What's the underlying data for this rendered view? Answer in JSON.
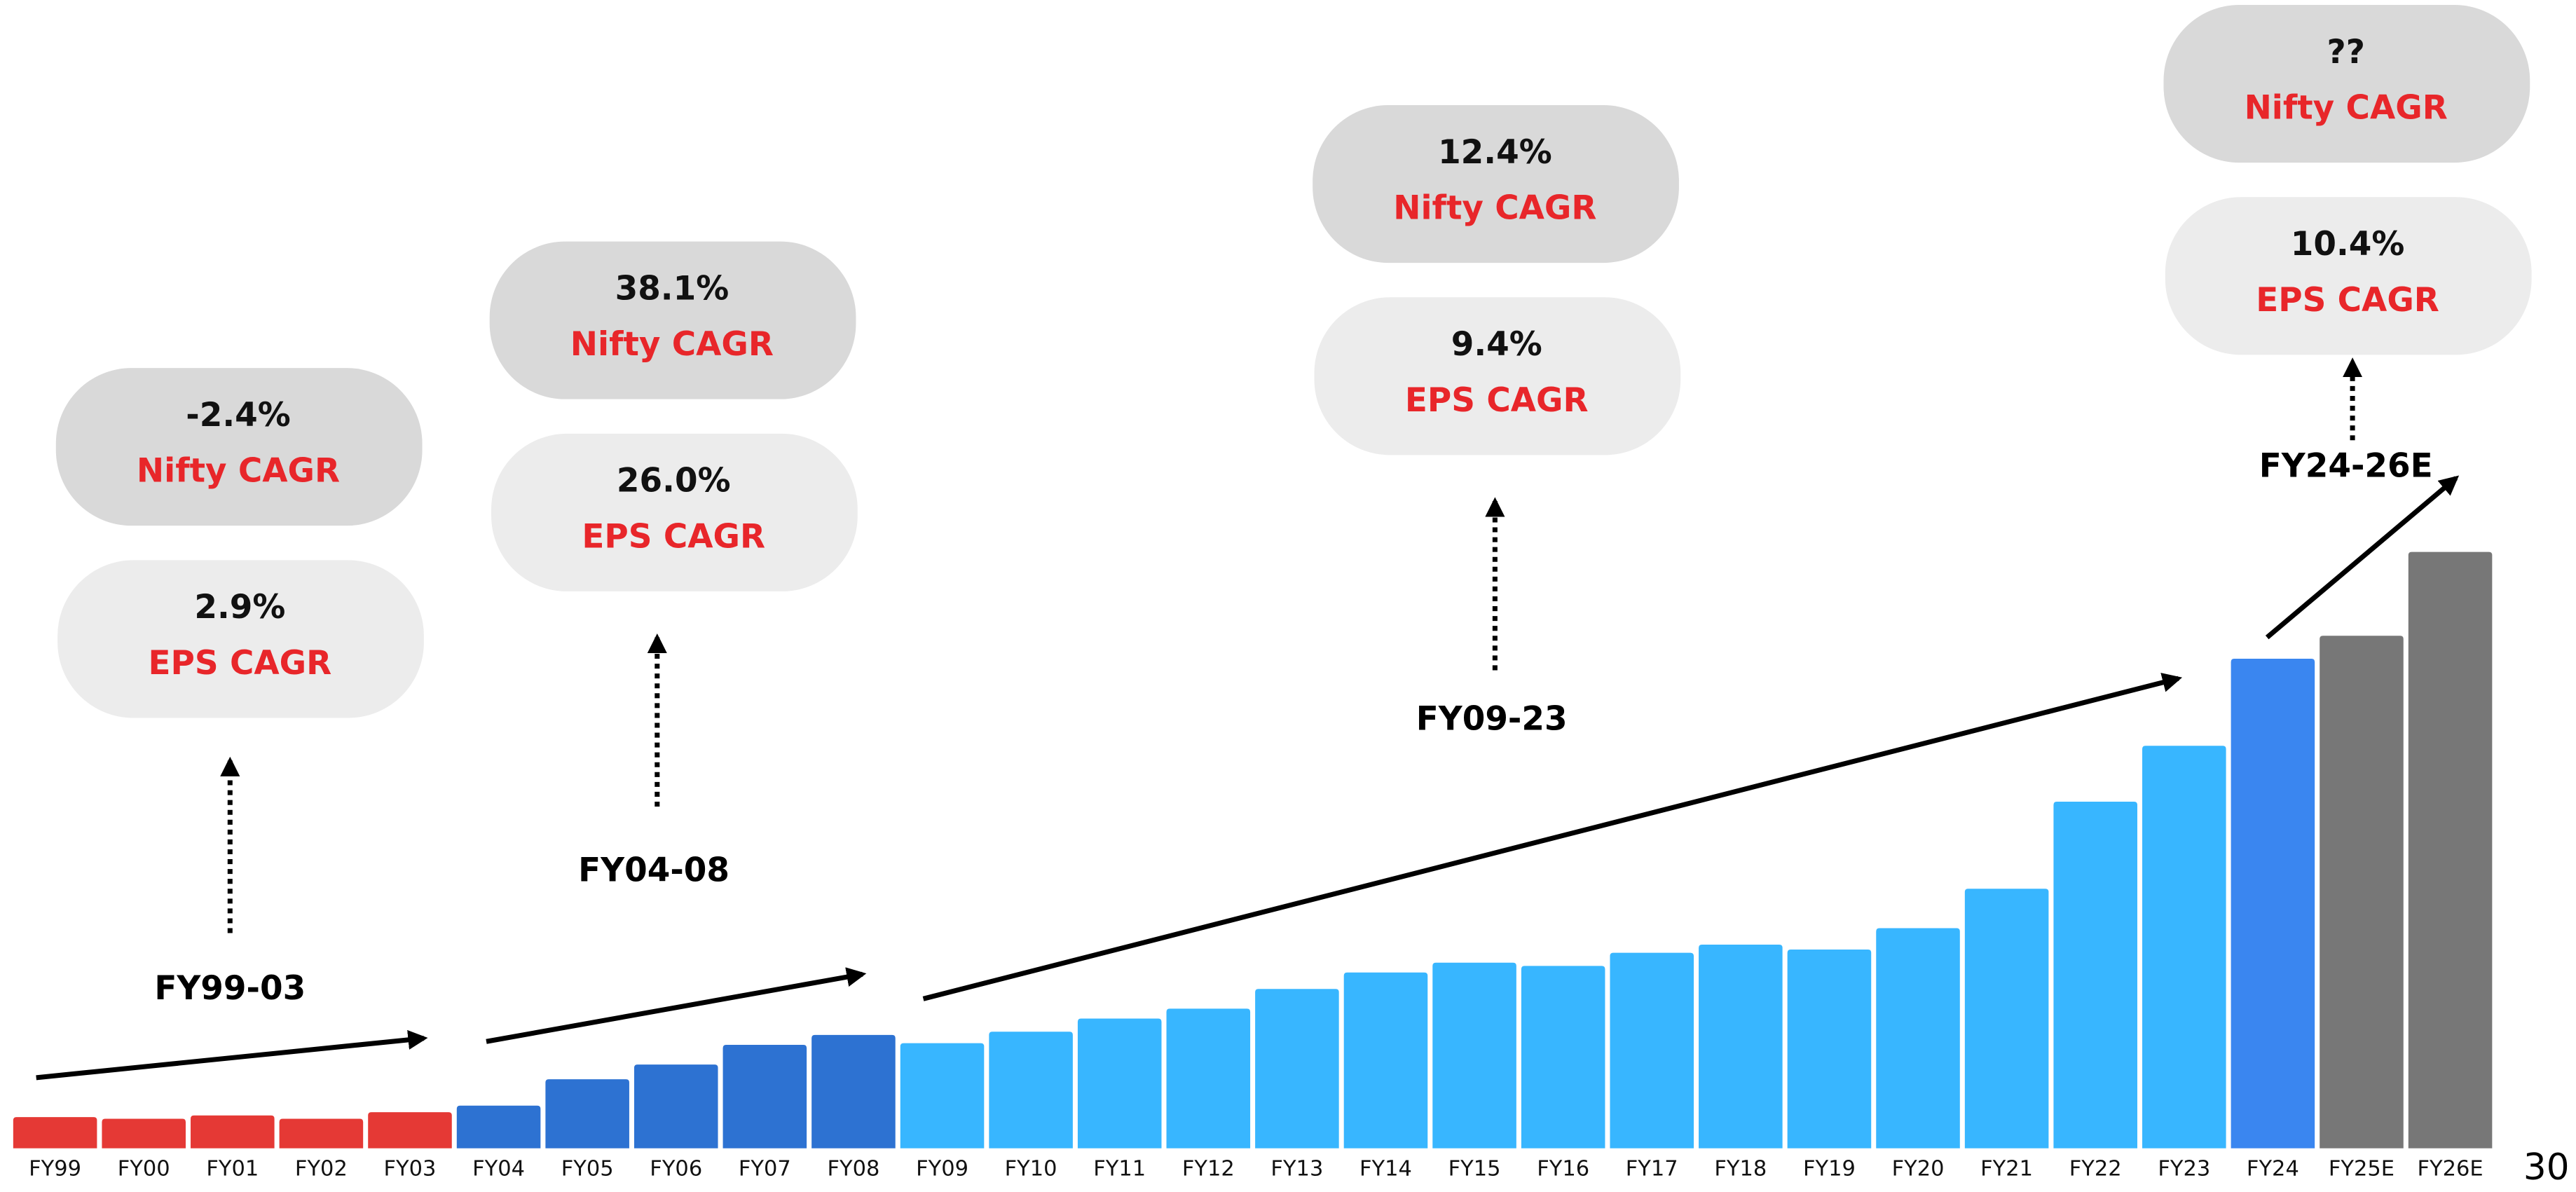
{
  "chart_data": {
    "type": "bar",
    "categories": [
      "FY99",
      "FY00",
      "FY01",
      "FY02",
      "FY03",
      "FY04",
      "FY05",
      "FY06",
      "FY07",
      "FY08",
      "FY09",
      "FY10",
      "FY11",
      "FY12",
      "FY13",
      "FY14",
      "FY15",
      "FY16",
      "FY17",
      "FY18",
      "FY19",
      "FY20",
      "FY21",
      "FY22",
      "FY23",
      "FY24",
      "FY25E",
      "FY26E"
    ],
    "values": [
      19,
      18,
      20,
      18,
      22,
      26,
      42,
      51,
      63,
      69,
      64,
      71,
      79,
      85,
      97,
      107,
      113,
      111,
      119,
      124,
      121,
      134,
      158,
      211,
      245,
      298,
      312,
      363
    ],
    "colors": [
      "#e53935",
      "#e53935",
      "#e53935",
      "#e53935",
      "#e53935",
      "#2d72d2",
      "#2d72d2",
      "#2d72d2",
      "#2d72d2",
      "#2d72d2",
      "#38b6ff",
      "#38b6ff",
      "#38b6ff",
      "#38b6ff",
      "#38b6ff",
      "#38b6ff",
      "#38b6ff",
      "#38b6ff",
      "#38b6ff",
      "#38b6ff",
      "#38b6ff",
      "#38b6ff",
      "#38b6ff",
      "#38b6ff",
      "#38b6ff",
      "#3a86f0",
      "#777777",
      "#777777"
    ],
    "annotations": [
      {
        "period": "FY99-03",
        "eps": "2.9%",
        "eps_label": "EPS CAGR",
        "nifty": "-2.4%",
        "nifty_label": "Nifty CAGR"
      },
      {
        "period": "FY04-08",
        "eps": "26.0%",
        "eps_label": "EPS CAGR",
        "nifty": "38.1%",
        "nifty_label": "Nifty CAGR"
      },
      {
        "period": "FY09-23",
        "eps": "9.4%",
        "eps_label": "EPS CAGR",
        "nifty": "12.4%",
        "nifty_label": "Nifty CAGR"
      },
      {
        "period": "FY24-26E",
        "eps": "10.4%",
        "eps_label": "EPS CAGR",
        "nifty": "??",
        "nifty_label": "Nifty CAGR"
      }
    ],
    "page_number": "30"
  }
}
